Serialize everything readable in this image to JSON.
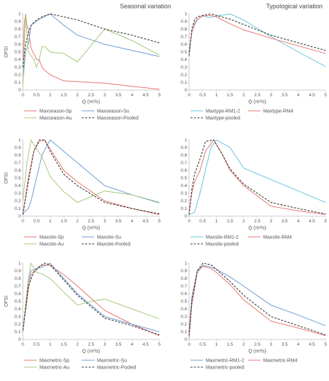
{
  "headers": {
    "left": "Seasonal variation",
    "right": "Typological variation"
  },
  "colors": {
    "red": "#e8726c",
    "blue": "#6b9bcf",
    "green": "#a5c77b",
    "cyan": "#63c4dc",
    "black": "#333333",
    "axis": "#bbbbbb"
  },
  "chart_data": [
    {
      "type": "line",
      "xlabel": "Q (m³/s)",
      "ylabel": "OFSI",
      "xlim": [
        0,
        5
      ],
      "ylim": [
        0,
        1
      ],
      "xticks": [
        "0",
        "0.5",
        "1",
        "1.5",
        "2",
        "2.5",
        "3",
        "3.5",
        "4",
        "4.5",
        "5"
      ],
      "yticks": [
        "0",
        "0.1",
        "0.2",
        "0.3",
        "0.4",
        "0.5",
        "0.6",
        "0.7",
        "0.8",
        "0.9",
        "1"
      ],
      "legend_placement": "bottom",
      "series": [
        {
          "name": "Maxseason-Sp",
          "color": "red",
          "dash": false,
          "x": [
            0,
            0.05,
            0.1,
            0.15,
            0.2,
            0.3,
            0.5,
            0.6,
            0.7,
            0.8,
            1,
            1.5,
            2,
            3,
            4,
            5
          ],
          "y": [
            0.4,
            0.85,
            1.0,
            0.85,
            0.8,
            0.55,
            0.4,
            0.4,
            0.3,
            0.26,
            0.2,
            0.12,
            0.11,
            0.09,
            0.05,
            0.01
          ]
        },
        {
          "name": "Maxseason-Su",
          "color": "blue",
          "dash": false,
          "x": [
            0,
            0.1,
            0.2,
            0.3,
            0.5,
            0.7,
            1,
            1.5,
            2,
            3,
            4,
            5
          ],
          "y": [
            0.1,
            0.5,
            0.6,
            0.85,
            0.9,
            0.95,
            1.0,
            0.85,
            0.72,
            0.6,
            0.52,
            0.44
          ]
        },
        {
          "name": "Maxseason-Au",
          "color": "green",
          "dash": false,
          "x": [
            0,
            0.1,
            0.2,
            0.3,
            0.4,
            0.5,
            0.6,
            0.7,
            0.8,
            1,
            1.5,
            2,
            3,
            4,
            5
          ],
          "y": [
            0.05,
            1.0,
            0.5,
            0.45,
            0.4,
            0.3,
            0.4,
            0.57,
            0.57,
            0.5,
            0.48,
            0.37,
            0.8,
            0.65,
            0.46
          ]
        },
        {
          "name": "Maxseason-Pooled",
          "color": "black",
          "dash": true,
          "x": [
            0,
            0.1,
            0.2,
            0.3,
            0.5,
            0.7,
            1,
            1.5,
            2,
            3,
            4,
            5
          ],
          "y": [
            0.3,
            0.6,
            0.75,
            0.85,
            0.92,
            0.96,
            1.0,
            0.96,
            0.92,
            0.8,
            0.72,
            0.62
          ]
        }
      ]
    },
    {
      "type": "line",
      "xlabel": "Q (m³/s)",
      "ylabel": "",
      "xlim": [
        0,
        5
      ],
      "ylim": [
        0,
        1
      ],
      "xticks": [
        "0",
        "0.5",
        "1",
        "1.5",
        "2",
        "2.5",
        "3",
        "3.5",
        "4",
        "4.5",
        "5"
      ],
      "yticks": [
        "0",
        "0.1",
        "0.2",
        "0.3",
        "0.4",
        "0.5",
        "0.6",
        "0.7",
        "0.8",
        "0.9",
        "1"
      ],
      "legend_placement": "bottom",
      "series": [
        {
          "name": "Maxtype-RM1-2",
          "color": "cyan",
          "dash": false,
          "x": [
            0,
            0.1,
            0.2,
            0.3,
            0.5,
            0.7,
            1,
            1.5,
            2,
            3,
            4,
            5
          ],
          "y": [
            0.45,
            0.75,
            0.85,
            0.92,
            0.98,
            0.95,
            0.97,
            1.0,
            0.92,
            0.7,
            0.5,
            0.31
          ]
        },
        {
          "name": "Maxtype-RM4",
          "color": "red",
          "dash": false,
          "x": [
            0,
            0.1,
            0.2,
            0.3,
            0.5,
            0.8,
            1,
            1.5,
            2,
            3,
            4,
            5
          ],
          "y": [
            0.5,
            0.75,
            0.88,
            0.93,
            0.97,
            0.98,
            0.96,
            0.87,
            0.79,
            0.68,
            0.58,
            0.48
          ]
        },
        {
          "name": "Maxtype-pooled",
          "color": "black",
          "dash": true,
          "x": [
            0,
            0.1,
            0.2,
            0.3,
            0.5,
            0.8,
            1,
            1.5,
            2,
            3,
            4,
            5
          ],
          "y": [
            0.45,
            0.8,
            0.92,
            0.96,
            0.98,
            1.0,
            0.98,
            0.93,
            0.86,
            0.72,
            0.62,
            0.52
          ]
        }
      ]
    },
    {
      "type": "line",
      "xlabel": "Q (m³/s)",
      "ylabel": "OFSI",
      "xlim": [
        0,
        5
      ],
      "ylim": [
        0,
        1
      ],
      "xticks": [
        "0",
        "0.5",
        "1",
        "1.5",
        "2",
        "2.5",
        "3",
        "3.5",
        "4",
        "4.5",
        "5"
      ],
      "yticks": [
        "0",
        "0.1",
        "0.2",
        "0.3",
        "0.4",
        "0.5",
        "0.6",
        "0.7",
        "0.8",
        "0.9",
        "1"
      ],
      "legend_placement": "bottom",
      "series": [
        {
          "name": "Maxsite-Sp",
          "color": "red",
          "dash": false,
          "x": [
            0,
            0.2,
            0.4,
            0.6,
            0.8,
            1,
            1.5,
            2,
            3,
            4,
            5
          ],
          "y": [
            0.02,
            0.5,
            0.85,
            0.98,
            1.0,
            0.88,
            0.6,
            0.45,
            0.2,
            0.1,
            0.02
          ]
        },
        {
          "name": "Maxsite-Su",
          "color": "blue",
          "dash": false,
          "x": [
            0,
            0.2,
            0.3,
            0.5,
            0.7,
            1,
            1.5,
            2,
            3,
            4,
            5
          ],
          "y": [
            0.03,
            0.1,
            0.2,
            0.5,
            0.8,
            1.0,
            0.85,
            0.7,
            0.4,
            0.28,
            0.18
          ]
        },
        {
          "name": "Maxsite-Au",
          "color": "green",
          "dash": false,
          "x": [
            0,
            0.15,
            0.3,
            0.5,
            0.7,
            1,
            1.5,
            2,
            3,
            4,
            5
          ],
          "y": [
            0.2,
            0.7,
            1.0,
            0.88,
            0.78,
            0.52,
            0.32,
            0.18,
            0.33,
            0.28,
            0.17
          ]
        },
        {
          "name": "Maxsite-Pooled",
          "color": "black",
          "dash": true,
          "x": [
            0,
            0.2,
            0.4,
            0.6,
            0.8,
            1,
            1.5,
            2,
            3,
            4,
            5
          ],
          "y": [
            0.02,
            0.45,
            0.85,
            1.0,
            1.0,
            0.85,
            0.55,
            0.4,
            0.18,
            0.1,
            0.03
          ]
        }
      ]
    },
    {
      "type": "line",
      "xlabel": "Q (m³/s)",
      "ylabel": "",
      "xlim": [
        0,
        5
      ],
      "ylim": [
        0,
        1
      ],
      "xticks": [
        "0",
        "0.5",
        "1",
        "1.5",
        "2",
        "2.5",
        "3",
        "3.5",
        "4",
        "4.5",
        "5"
      ],
      "yticks": [
        "0",
        "0.1",
        "0.2",
        "0.3",
        "0.4",
        "0.5",
        "0.6",
        "0.7",
        "0.8",
        "0.9",
        "1"
      ],
      "legend_placement": "bottom",
      "series": [
        {
          "name": "Maxsite-RM1-2",
          "color": "cyan",
          "dash": false,
          "x": [
            0,
            0.2,
            0.4,
            0.6,
            0.8,
            1,
            1.5,
            2,
            3,
            4,
            5
          ],
          "y": [
            0.02,
            0.05,
            0.3,
            0.6,
            0.9,
            1.0,
            0.9,
            0.63,
            0.48,
            0.33,
            0.18
          ]
        },
        {
          "name": "Maxsite-RM4",
          "color": "red",
          "dash": false,
          "x": [
            0,
            0.1,
            0.2,
            0.4,
            0.6,
            0.9,
            1.2,
            1.5,
            2,
            3,
            4,
            5
          ],
          "y": [
            0.05,
            0.3,
            0.45,
            0.6,
            0.85,
            1.0,
            0.82,
            0.6,
            0.4,
            0.13,
            0.07,
            0.02
          ]
        },
        {
          "name": "Maxsite-pooled",
          "color": "black",
          "dash": true,
          "x": [
            0,
            0.1,
            0.2,
            0.4,
            0.6,
            0.9,
            1.2,
            1.5,
            2,
            3,
            4,
            5
          ],
          "y": [
            0.02,
            0.35,
            0.55,
            0.75,
            0.98,
            1.0,
            0.82,
            0.62,
            0.42,
            0.18,
            0.1,
            0.03
          ]
        }
      ]
    },
    {
      "type": "line",
      "xlabel": "Q (m³/s)",
      "ylabel": "OFSI",
      "xlim": [
        0,
        5
      ],
      "ylim": [
        0,
        1
      ],
      "xticks": [
        "0",
        "0.5",
        "1",
        "1.5",
        "2",
        "2.5",
        "3",
        "3.5",
        "4",
        "4.5",
        "5"
      ],
      "yticks": [
        "0",
        "0.1",
        "0.2",
        "0.3",
        "0.4",
        "0.5",
        "0.6",
        "0.7",
        "0.8",
        "0.9",
        "1"
      ],
      "legend_placement": "bottom",
      "series": [
        {
          "name": "Maxmetric-Sp",
          "color": "red",
          "dash": false,
          "x": [
            0,
            0.2,
            0.3,
            0.5,
            0.7,
            1,
            1.5,
            2,
            3,
            4,
            5
          ],
          "y": [
            0.1,
            0.65,
            0.85,
            0.93,
            0.98,
            0.97,
            0.85,
            0.7,
            0.38,
            0.2,
            0.05
          ]
        },
        {
          "name": "Maxmetric-Su",
          "color": "blue",
          "dash": false,
          "x": [
            0,
            0.2,
            0.3,
            0.5,
            0.7,
            1,
            1.5,
            2,
            3,
            4,
            5
          ],
          "y": [
            0.1,
            0.75,
            0.9,
            0.93,
            0.95,
            1.0,
            0.8,
            0.6,
            0.3,
            0.2,
            0.1
          ]
        },
        {
          "name": "Maxmetric-Au",
          "color": "green",
          "dash": false,
          "x": [
            0,
            0.2,
            0.3,
            0.5,
            0.7,
            1,
            1.5,
            2,
            2.5,
            3,
            4,
            5
          ],
          "y": [
            0.1,
            0.8,
            1.0,
            0.88,
            0.86,
            0.8,
            0.62,
            0.45,
            0.5,
            0.53,
            0.4,
            0.27
          ]
        },
        {
          "name": "Maxmetric-Pooled",
          "color": "black",
          "dash": true,
          "x": [
            0,
            0.2,
            0.4,
            0.6,
            0.8,
            1,
            1.5,
            2,
            3,
            4,
            5
          ],
          "y": [
            0.12,
            0.7,
            0.88,
            0.95,
            1.0,
            0.98,
            0.78,
            0.58,
            0.28,
            0.18,
            0.06
          ]
        }
      ]
    },
    {
      "type": "line",
      "xlabel": "Q (m³/s)",
      "ylabel": "",
      "xlim": [
        0,
        5
      ],
      "ylim": [
        0,
        1
      ],
      "xticks": [
        "0",
        "0.5",
        "1",
        "1.5",
        "2",
        "2.5",
        "3",
        "3.5",
        "4",
        "4.5",
        "5"
      ],
      "yticks": [
        "0",
        "0.1",
        "0.2",
        "0.3",
        "0.4",
        "0.5",
        "0.6",
        "0.7",
        "0.8",
        "0.9",
        "1"
      ],
      "legend_placement": "bottom",
      "series": [
        {
          "name": "Maxmetric-RM1-2",
          "color": "blue",
          "dash": false,
          "x": [
            0,
            0.1,
            0.3,
            0.5,
            0.8,
            1,
            1.5,
            2,
            3,
            4,
            5
          ],
          "y": [
            0.1,
            0.55,
            0.9,
            0.97,
            0.95,
            0.92,
            0.82,
            0.7,
            0.45,
            0.32,
            0.18
          ]
        },
        {
          "name": "Maxmetric-RM4",
          "color": "red",
          "dash": false,
          "x": [
            0,
            0.1,
            0.3,
            0.5,
            0.8,
            1,
            1.5,
            2,
            3,
            4,
            5
          ],
          "y": [
            0.02,
            0.45,
            0.88,
            0.96,
            0.93,
            0.88,
            0.72,
            0.52,
            0.24,
            0.15,
            0.05
          ]
        },
        {
          "name": "Maxmetric-pooled",
          "color": "black",
          "dash": true,
          "x": [
            0,
            0.1,
            0.3,
            0.5,
            0.8,
            1,
            1.5,
            2,
            3,
            4,
            5
          ],
          "y": [
            0.05,
            0.5,
            0.9,
            1.0,
            0.98,
            0.92,
            0.76,
            0.58,
            0.3,
            0.18,
            0.06
          ]
        }
      ]
    }
  ]
}
